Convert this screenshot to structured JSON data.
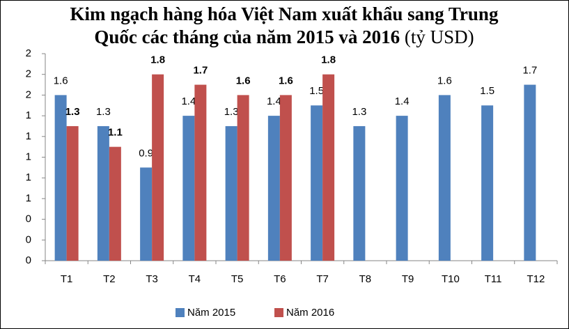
{
  "chart_data": {
    "type": "bar",
    "title": "Kim ngạch hàng hóa Việt Nam xuất khẩu sang Trung Quốc các tháng của năm 2015 và 2016",
    "unit": "(tỷ USD)",
    "categories": [
      "T1",
      "T2",
      "T3",
      "T4",
      "T5",
      "T6",
      "T7",
      "T8",
      "T9",
      "T10",
      "T11",
      "T12"
    ],
    "series": [
      {
        "name": "Năm 2015",
        "color": "#4f81bd",
        "values": [
          1.6,
          1.3,
          0.9,
          1.4,
          1.3,
          1.4,
          1.5,
          1.3,
          1.4,
          1.6,
          1.5,
          1.7
        ]
      },
      {
        "name": "Năm 2016",
        "color": "#c0504d",
        "values": [
          1.3,
          1.1,
          1.8,
          1.7,
          1.6,
          1.6,
          1.8,
          null,
          null,
          null,
          null,
          null
        ]
      }
    ],
    "ylim": [
      0,
      2
    ],
    "yticks": [
      0,
      {
        "value": 0.2,
        "label": "0"
      },
      {
        "value": 0.4,
        "label": "0"
      },
      {
        "value": 0.6,
        "label": "1"
      },
      {
        "value": 0.8,
        "label": "1"
      },
      1,
      {
        "value": 1.2,
        "label": "1"
      },
      {
        "value": 1.4,
        "label": "1"
      },
      {
        "value": 1.6,
        "label": "2"
      },
      {
        "value": 1.8,
        "label": "2"
      },
      2
    ],
    "grid": false,
    "legend": "bottom"
  }
}
